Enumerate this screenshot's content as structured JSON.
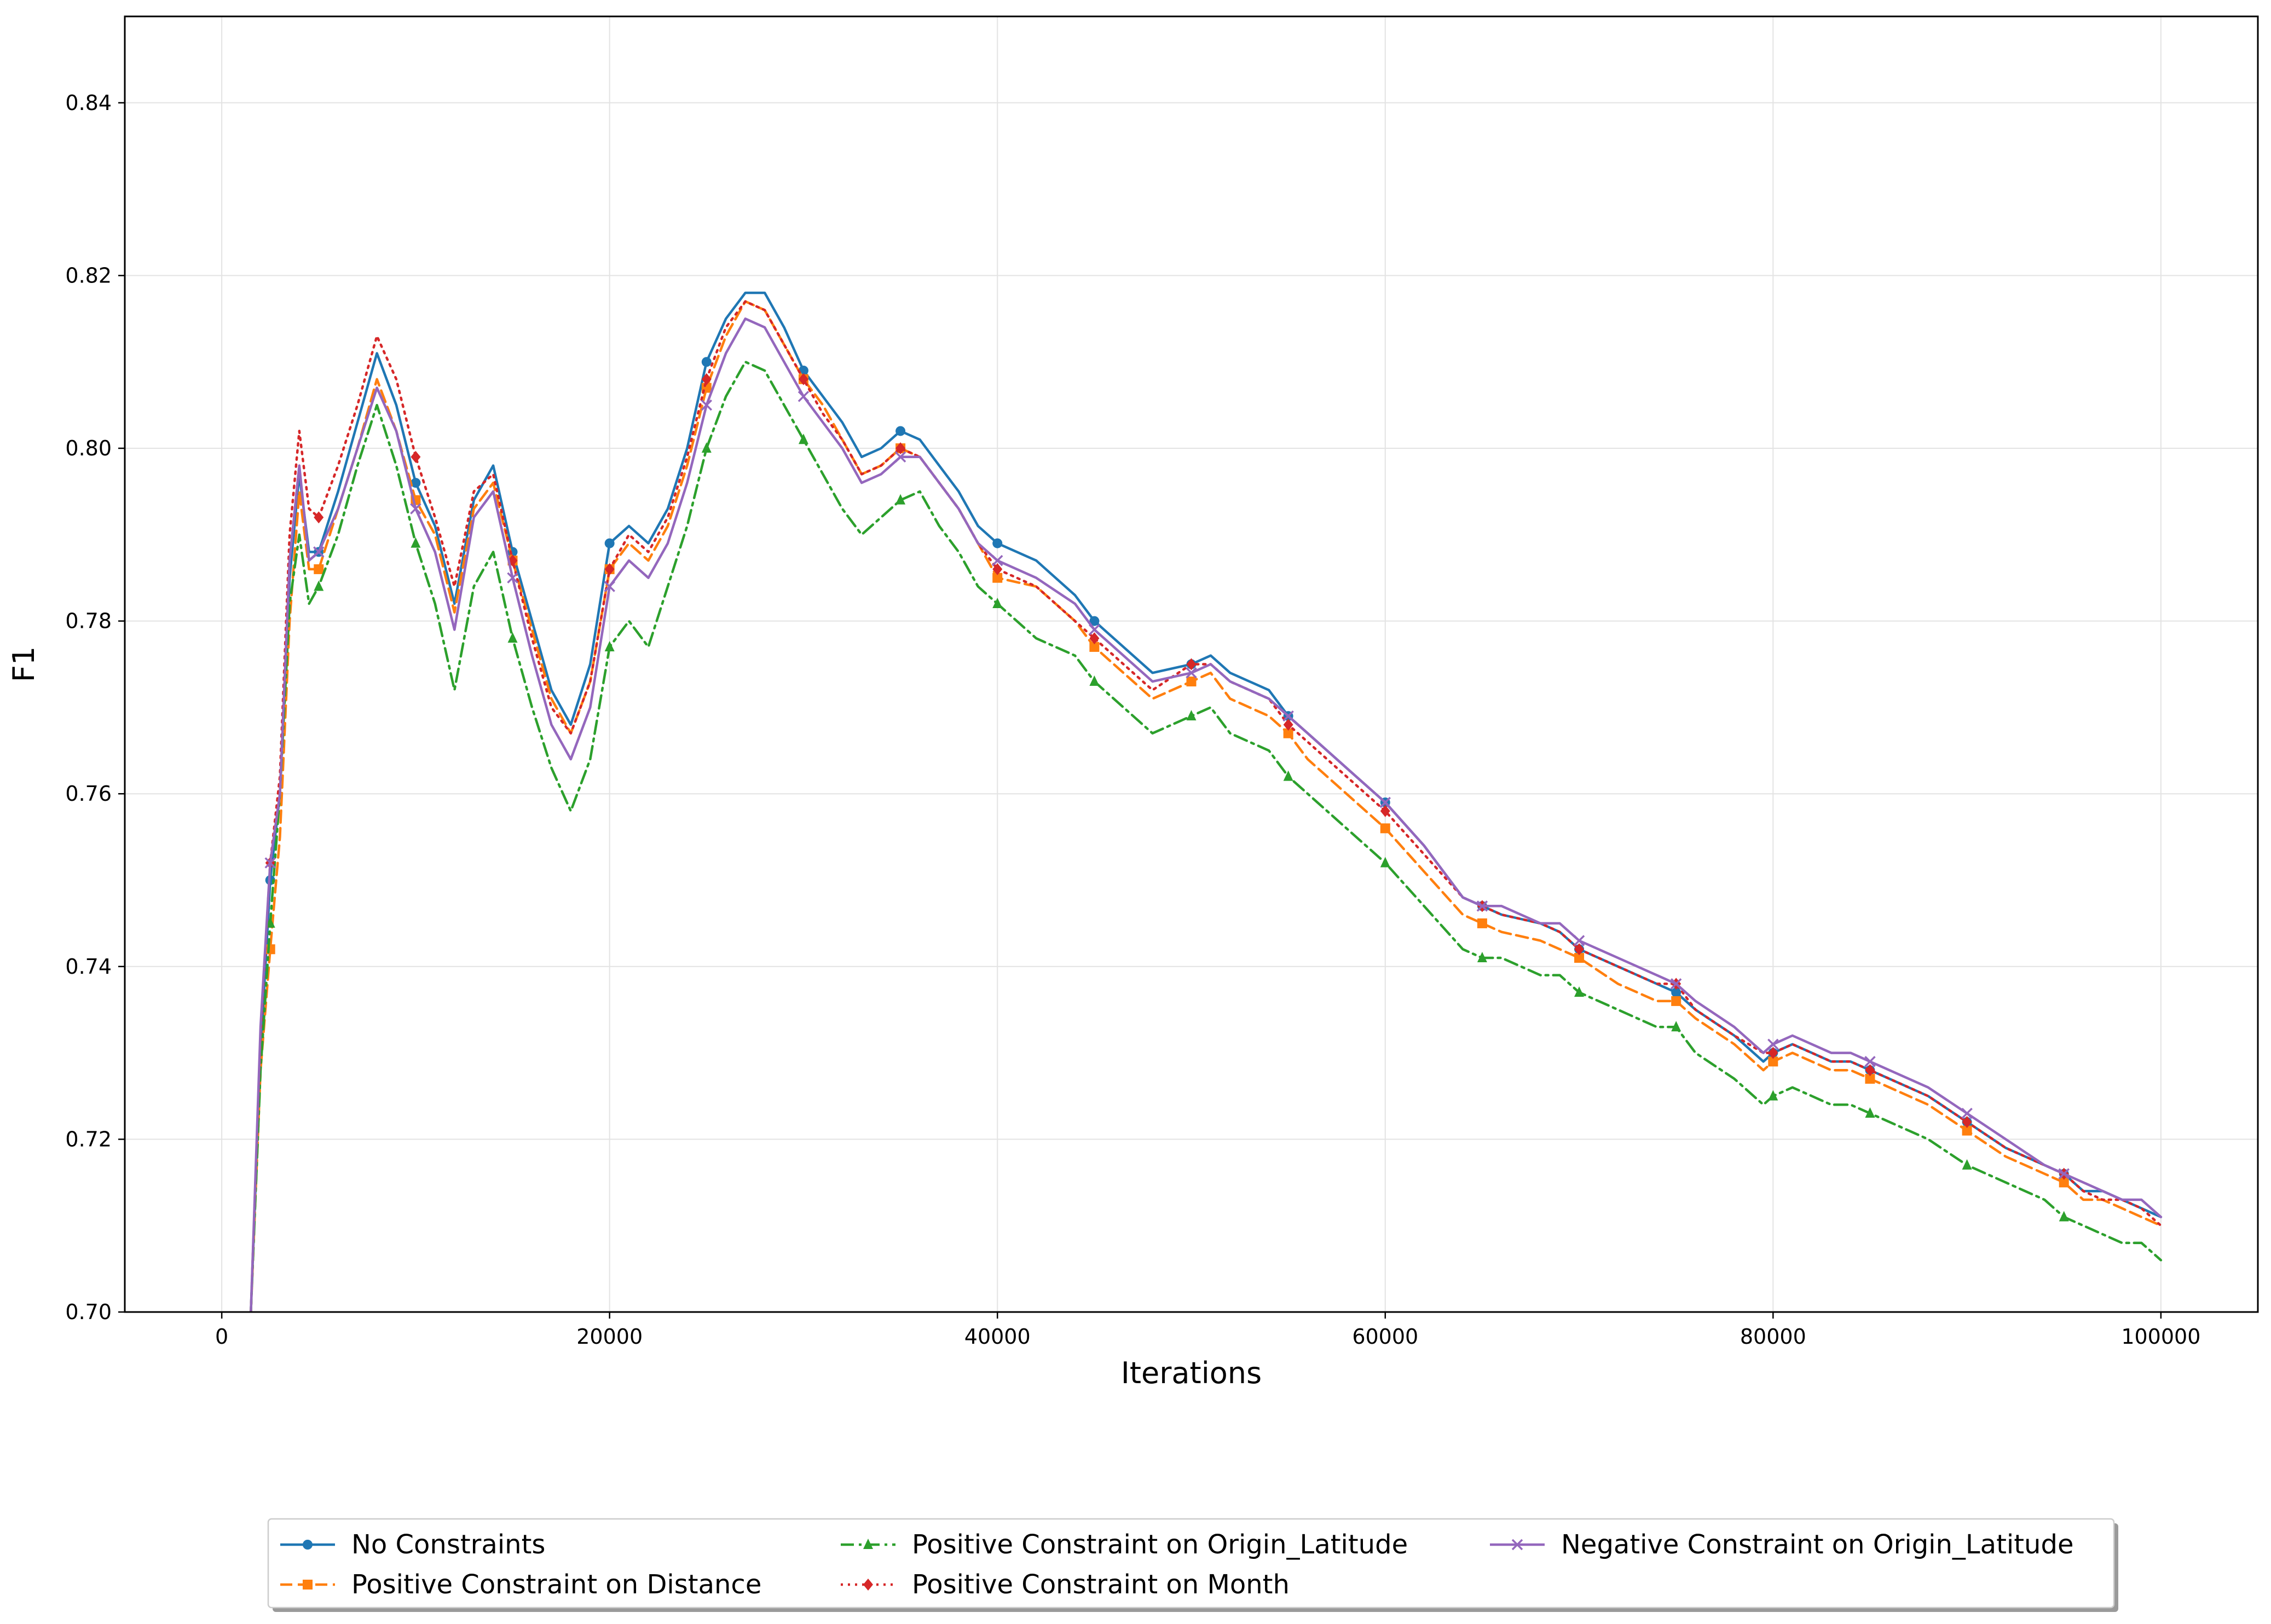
{
  "chart_data": {
    "type": "line",
    "title": "",
    "xlabel": "Iterations",
    "ylabel": "F1",
    "xlim": [
      -5000,
      105000
    ],
    "ylim": [
      0.7,
      0.85
    ],
    "x_ticks": [
      0,
      20000,
      40000,
      60000,
      80000,
      100000
    ],
    "x_tick_labels": [
      "0",
      "20000",
      "40000",
      "60000",
      "80000",
      "100000"
    ],
    "y_ticks": [
      0.7,
      0.72,
      0.74,
      0.76,
      0.78,
      0.8,
      0.82,
      0.84
    ],
    "y_tick_labels": [
      "0.70",
      "0.72",
      "0.74",
      "0.76",
      "0.78",
      "0.80",
      "0.82",
      "0.84"
    ],
    "grid": true,
    "legend_position": "bottom",
    "series": [
      {
        "name": "No Constraints",
        "color": "#1f77b4",
        "line_style": "solid",
        "marker": "circle",
        "x": [
          1500,
          2000,
          2500,
          3000,
          3500,
          4000,
          4500,
          5000,
          6000,
          7000,
          8000,
          9000,
          10000,
          11000,
          12000,
          13000,
          14000,
          15000,
          16000,
          17000,
          18000,
          19000,
          20000,
          21000,
          22000,
          23000,
          24000,
          25000,
          26000,
          27000,
          28000,
          29000,
          30000,
          31000,
          32000,
          33000,
          34000,
          35000,
          36000,
          37000,
          38000,
          39000,
          40000,
          42000,
          44000,
          45000,
          46000,
          48000,
          50000,
          51000,
          52000,
          54000,
          55000,
          56000,
          58000,
          60000,
          62000,
          64000,
          65000,
          66000,
          68000,
          69000,
          70000,
          72000,
          74000,
          75000,
          76000,
          78000,
          79500,
          80000,
          81000,
          82000,
          83000,
          84000,
          85000,
          86000,
          88000,
          90000,
          92000,
          94000,
          95000,
          96000,
          97000,
          98000,
          99000,
          100000
        ],
        "y": [
          0.7,
          0.73,
          0.75,
          0.76,
          0.785,
          0.797,
          0.788,
          0.788,
          0.795,
          0.803,
          0.811,
          0.805,
          0.796,
          0.791,
          0.782,
          0.794,
          0.798,
          0.788,
          0.78,
          0.772,
          0.768,
          0.775,
          0.789,
          0.791,
          0.789,
          0.793,
          0.8,
          0.81,
          0.815,
          0.818,
          0.818,
          0.814,
          0.809,
          0.806,
          0.803,
          0.799,
          0.8,
          0.802,
          0.801,
          0.798,
          0.795,
          0.791,
          0.789,
          0.787,
          0.783,
          0.78,
          0.778,
          0.774,
          0.775,
          0.776,
          0.774,
          0.772,
          0.769,
          0.767,
          0.763,
          0.759,
          0.754,
          0.748,
          0.747,
          0.746,
          0.745,
          0.744,
          0.742,
          0.74,
          0.738,
          0.737,
          0.735,
          0.732,
          0.729,
          0.73,
          0.731,
          0.73,
          0.729,
          0.729,
          0.728,
          0.727,
          0.725,
          0.722,
          0.719,
          0.717,
          0.716,
          0.714,
          0.714,
          0.713,
          0.712,
          0.711
        ]
      },
      {
        "name": "Positive Constraint on Distance",
        "color": "#ff7f0e",
        "line_style": "dashed",
        "marker": "square",
        "x": [
          1500,
          2000,
          2500,
          3000,
          3500,
          4000,
          4500,
          5000,
          6000,
          7000,
          8000,
          9000,
          10000,
          11000,
          12000,
          13000,
          14000,
          15000,
          16000,
          17000,
          18000,
          19000,
          20000,
          21000,
          22000,
          23000,
          24000,
          25000,
          26000,
          27000,
          28000,
          29000,
          30000,
          31000,
          32000,
          33000,
          34000,
          35000,
          36000,
          37000,
          38000,
          39000,
          40000,
          42000,
          44000,
          45000,
          46000,
          48000,
          50000,
          51000,
          52000,
          54000,
          55000,
          56000,
          58000,
          60000,
          62000,
          64000,
          65000,
          66000,
          68000,
          69000,
          70000,
          72000,
          74000,
          75000,
          76000,
          78000,
          79500,
          80000,
          81000,
          82000,
          83000,
          84000,
          85000,
          86000,
          88000,
          90000,
          92000,
          94000,
          95000,
          96000,
          97000,
          98000,
          99000,
          100000
        ],
        "y": [
          0.7,
          0.728,
          0.742,
          0.755,
          0.78,
          0.795,
          0.786,
          0.786,
          0.793,
          0.8,
          0.808,
          0.802,
          0.794,
          0.79,
          0.781,
          0.793,
          0.796,
          0.787,
          0.779,
          0.771,
          0.767,
          0.773,
          0.786,
          0.789,
          0.787,
          0.791,
          0.798,
          0.807,
          0.813,
          0.817,
          0.816,
          0.812,
          0.808,
          0.805,
          0.801,
          0.797,
          0.798,
          0.8,
          0.799,
          0.796,
          0.793,
          0.789,
          0.785,
          0.784,
          0.78,
          0.777,
          0.775,
          0.771,
          0.773,
          0.774,
          0.771,
          0.769,
          0.767,
          0.764,
          0.76,
          0.756,
          0.751,
          0.746,
          0.745,
          0.744,
          0.743,
          0.742,
          0.741,
          0.738,
          0.736,
          0.736,
          0.734,
          0.731,
          0.728,
          0.729,
          0.73,
          0.729,
          0.728,
          0.728,
          0.727,
          0.726,
          0.724,
          0.721,
          0.718,
          0.716,
          0.715,
          0.713,
          0.713,
          0.712,
          0.711,
          0.71
        ]
      },
      {
        "name": "Positive Constraint on Origin_Latitude",
        "color": "#2ca02c",
        "line_style": "dashdot",
        "marker": "triangle",
        "x": [
          1500,
          2000,
          2500,
          3000,
          3500,
          4000,
          4500,
          5000,
          6000,
          7000,
          8000,
          9000,
          10000,
          11000,
          12000,
          13000,
          14000,
          15000,
          16000,
          17000,
          18000,
          19000,
          20000,
          21000,
          22000,
          23000,
          24000,
          25000,
          26000,
          27000,
          28000,
          29000,
          30000,
          31000,
          32000,
          33000,
          34000,
          35000,
          36000,
          37000,
          38000,
          39000,
          40000,
          42000,
          44000,
          45000,
          46000,
          48000,
          50000,
          51000,
          52000,
          54000,
          55000,
          56000,
          58000,
          60000,
          62000,
          64000,
          65000,
          66000,
          68000,
          69000,
          70000,
          72000,
          74000,
          75000,
          76000,
          78000,
          79500,
          80000,
          81000,
          82000,
          83000,
          84000,
          85000,
          86000,
          88000,
          90000,
          92000,
          94000,
          95000,
          96000,
          97000,
          98000,
          99000,
          100000
        ],
        "y": [
          0.7,
          0.728,
          0.745,
          0.76,
          0.782,
          0.79,
          0.782,
          0.784,
          0.79,
          0.798,
          0.805,
          0.798,
          0.789,
          0.782,
          0.772,
          0.784,
          0.788,
          0.778,
          0.77,
          0.763,
          0.758,
          0.764,
          0.777,
          0.78,
          0.777,
          0.784,
          0.791,
          0.8,
          0.806,
          0.81,
          0.809,
          0.805,
          0.801,
          0.797,
          0.793,
          0.79,
          0.792,
          0.794,
          0.795,
          0.791,
          0.788,
          0.784,
          0.782,
          0.778,
          0.776,
          0.773,
          0.771,
          0.767,
          0.769,
          0.77,
          0.767,
          0.765,
          0.762,
          0.76,
          0.756,
          0.752,
          0.747,
          0.742,
          0.741,
          0.741,
          0.739,
          0.739,
          0.737,
          0.735,
          0.733,
          0.733,
          0.73,
          0.727,
          0.724,
          0.725,
          0.726,
          0.725,
          0.724,
          0.724,
          0.723,
          0.722,
          0.72,
          0.717,
          0.715,
          0.713,
          0.711,
          0.71,
          0.709,
          0.708,
          0.708,
          0.706
        ]
      },
      {
        "name": "Positive Constraint on Month",
        "color": "#d62728",
        "line_style": "dotted",
        "marker": "diamond",
        "x": [
          1500,
          2000,
          2500,
          3000,
          3500,
          4000,
          4500,
          5000,
          6000,
          7000,
          8000,
          9000,
          10000,
          11000,
          12000,
          13000,
          14000,
          15000,
          16000,
          17000,
          18000,
          19000,
          20000,
          21000,
          22000,
          23000,
          24000,
          25000,
          26000,
          27000,
          28000,
          29000,
          30000,
          31000,
          32000,
          33000,
          34000,
          35000,
          36000,
          37000,
          38000,
          39000,
          40000,
          42000,
          44000,
          45000,
          46000,
          48000,
          50000,
          51000,
          52000,
          54000,
          55000,
          56000,
          58000,
          60000,
          62000,
          64000,
          65000,
          66000,
          68000,
          69000,
          70000,
          72000,
          74000,
          75000,
          76000,
          78000,
          79500,
          80000,
          81000,
          82000,
          83000,
          84000,
          85000,
          86000,
          88000,
          90000,
          92000,
          94000,
          95000,
          96000,
          97000,
          98000,
          99000,
          100000
        ],
        "y": [
          0.7,
          0.732,
          0.752,
          0.762,
          0.79,
          0.802,
          0.793,
          0.792,
          0.798,
          0.805,
          0.813,
          0.808,
          0.799,
          0.792,
          0.784,
          0.795,
          0.797,
          0.787,
          0.778,
          0.77,
          0.767,
          0.773,
          0.786,
          0.79,
          0.788,
          0.792,
          0.799,
          0.808,
          0.814,
          0.817,
          0.816,
          0.812,
          0.808,
          0.804,
          0.801,
          0.797,
          0.798,
          0.8,
          0.799,
          0.796,
          0.793,
          0.789,
          0.786,
          0.784,
          0.78,
          0.778,
          0.776,
          0.772,
          0.775,
          0.775,
          0.773,
          0.771,
          0.768,
          0.766,
          0.762,
          0.758,
          0.753,
          0.748,
          0.747,
          0.746,
          0.745,
          0.744,
          0.742,
          0.74,
          0.738,
          0.738,
          0.735,
          0.732,
          0.73,
          0.73,
          0.731,
          0.73,
          0.729,
          0.729,
          0.728,
          0.727,
          0.725,
          0.722,
          0.719,
          0.717,
          0.716,
          0.714,
          0.713,
          0.713,
          0.712,
          0.71
        ]
      },
      {
        "name": "Negative Constraint on Origin_Latitude",
        "color": "#9467bd",
        "line_style": "solid",
        "marker": "x",
        "x": [
          1500,
          2000,
          2500,
          3000,
          3500,
          4000,
          4500,
          5000,
          6000,
          7000,
          8000,
          9000,
          10000,
          11000,
          12000,
          13000,
          14000,
          15000,
          16000,
          17000,
          18000,
          19000,
          20000,
          21000,
          22000,
          23000,
          24000,
          25000,
          26000,
          27000,
          28000,
          29000,
          30000,
          31000,
          32000,
          33000,
          34000,
          35000,
          36000,
          37000,
          38000,
          39000,
          40000,
          42000,
          44000,
          45000,
          46000,
          48000,
          50000,
          51000,
          52000,
          54000,
          55000,
          56000,
          58000,
          60000,
          62000,
          64000,
          65000,
          66000,
          68000,
          69000,
          70000,
          72000,
          74000,
          75000,
          76000,
          78000,
          79500,
          80000,
          81000,
          82000,
          83000,
          84000,
          85000,
          86000,
          88000,
          90000,
          92000,
          94000,
          95000,
          96000,
          97000,
          98000,
          99000,
          100000
        ],
        "y": [
          0.7,
          0.733,
          0.752,
          0.76,
          0.787,
          0.798,
          0.787,
          0.788,
          0.793,
          0.8,
          0.807,
          0.802,
          0.793,
          0.788,
          0.779,
          0.792,
          0.795,
          0.785,
          0.776,
          0.768,
          0.764,
          0.77,
          0.784,
          0.787,
          0.785,
          0.789,
          0.796,
          0.805,
          0.811,
          0.815,
          0.814,
          0.81,
          0.806,
          0.803,
          0.8,
          0.796,
          0.797,
          0.799,
          0.799,
          0.796,
          0.793,
          0.789,
          0.787,
          0.785,
          0.782,
          0.779,
          0.777,
          0.773,
          0.774,
          0.775,
          0.773,
          0.771,
          0.769,
          0.767,
          0.763,
          0.759,
          0.754,
          0.748,
          0.747,
          0.747,
          0.745,
          0.745,
          0.743,
          0.741,
          0.739,
          0.738,
          0.736,
          0.733,
          0.73,
          0.731,
          0.732,
          0.731,
          0.73,
          0.73,
          0.729,
          0.728,
          0.726,
          0.723,
          0.72,
          0.717,
          0.716,
          0.715,
          0.714,
          0.713,
          0.713,
          0.711
        ]
      }
    ]
  }
}
